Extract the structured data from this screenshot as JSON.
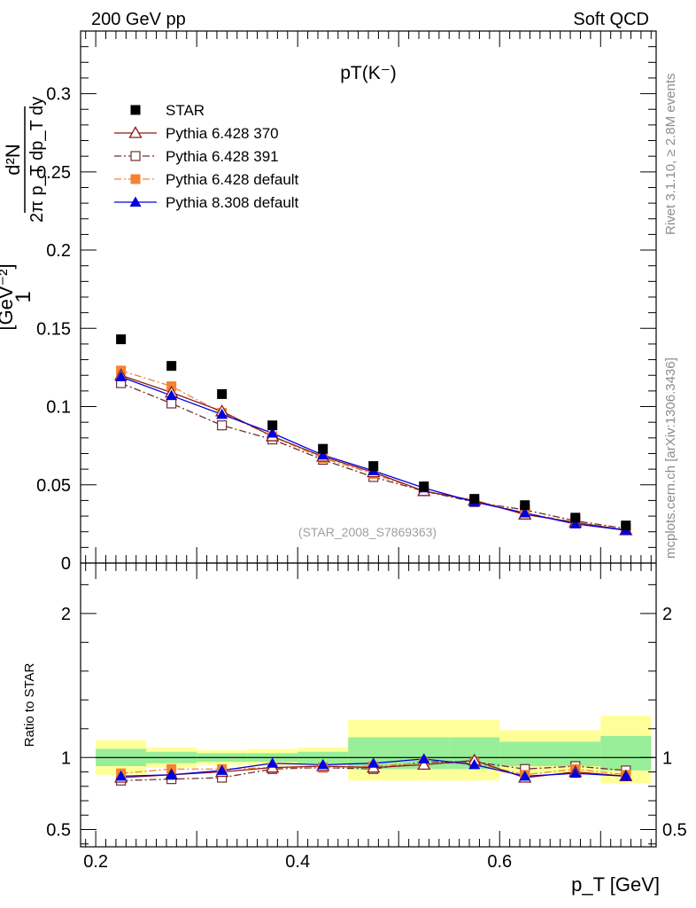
{
  "header": {
    "left": "200 GeV pp",
    "right": "Soft QCD"
  },
  "side_notes": {
    "rivet": "Rivet 3.1.10, ≥ 2.8M events",
    "site": "mcplots.cern.ch [arXiv:1306.3436]"
  },
  "chart_data": [
    {
      "type": "scatter",
      "panel": "main",
      "title": "pT(K⁻)",
      "watermark": "(STAR_2008_S7869363)",
      "ylabel_parts": {
        "lead": "1",
        "frac_num": "d²N",
        "frac_den": "2π p_T dp_T dy",
        "unit": "[GeV⁻²]"
      },
      "xlabel": "p_T [GeV]",
      "xlim": [
        0.185,
        0.755
      ],
      "ylim": [
        0,
        0.34
      ],
      "y_ticks": [
        "0",
        "0.05",
        "0.1",
        "0.15",
        "0.2",
        "0.25",
        "0.3"
      ],
      "legend_position": "top-left",
      "x": [
        0.225,
        0.275,
        0.325,
        0.375,
        0.425,
        0.475,
        0.525,
        0.575,
        0.625,
        0.675,
        0.725
      ],
      "series": [
        {
          "name": "STAR",
          "color": "#000000",
          "marker": "square",
          "line": "none",
          "values": [
            0.143,
            0.126,
            0.108,
            0.088,
            0.073,
            0.062,
            0.049,
            0.041,
            0.037,
            0.029,
            0.024
          ]
        },
        {
          "name": "Pythia 6.428 370",
          "color": "#8b1a1a",
          "marker": "open-triangle",
          "line": "solid",
          "values": [
            0.12,
            0.109,
            0.097,
            0.081,
            0.068,
            0.058,
            0.046,
            0.04,
            0.031,
            0.026,
            0.021
          ]
        },
        {
          "name": "Pythia 6.428 391",
          "color": "#6b3030",
          "marker": "open-square",
          "line": "dashdot",
          "values": [
            0.115,
            0.102,
            0.088,
            0.079,
            0.066,
            0.055,
            0.046,
            0.039,
            0.034,
            0.027,
            0.022
          ]
        },
        {
          "name": "Pythia 6.428 default",
          "color": "#f58231",
          "marker": "square",
          "line": "dashdot",
          "values": [
            0.123,
            0.113,
            0.096,
            0.081,
            0.067,
            0.057,
            0.046,
            0.04,
            0.032,
            0.026,
            0.021
          ]
        },
        {
          "name": "Pythia 8.308 default",
          "color": "#0000e0",
          "marker": "triangle",
          "line": "solid",
          "values": [
            0.119,
            0.107,
            0.095,
            0.083,
            0.069,
            0.059,
            0.048,
            0.039,
            0.032,
            0.025,
            0.021
          ]
        }
      ]
    },
    {
      "type": "scatter",
      "panel": "ratio",
      "ylabel": "Ratio to STAR",
      "ylim": [
        0.38,
        2.35
      ],
      "y_ticks": [
        "0.5",
        "1",
        "2"
      ],
      "x_ticks": [
        "0.2",
        "0.4",
        "0.6"
      ],
      "bins": [
        [
          0.2,
          0.25
        ],
        [
          0.25,
          0.3
        ],
        [
          0.3,
          0.35
        ],
        [
          0.35,
          0.4
        ],
        [
          0.4,
          0.45
        ],
        [
          0.45,
          0.55
        ],
        [
          0.55,
          0.6
        ],
        [
          0.6,
          0.7
        ],
        [
          0.7,
          0.75
        ]
      ],
      "band_yellow": [
        [
          0.88,
          1.12
        ],
        [
          0.93,
          1.07
        ],
        [
          0.95,
          1.05
        ],
        [
          0.94,
          1.06
        ],
        [
          0.93,
          1.07
        ],
        [
          0.84,
          1.26
        ],
        [
          0.84,
          1.26
        ],
        [
          0.89,
          1.19
        ],
        [
          0.82,
          1.29
        ]
      ],
      "band_green": [
        [
          0.94,
          1.06
        ],
        [
          0.96,
          1.04
        ],
        [
          0.97,
          1.03
        ],
        [
          0.97,
          1.03
        ],
        [
          0.96,
          1.04
        ],
        [
          0.92,
          1.14
        ],
        [
          0.92,
          1.14
        ],
        [
          0.94,
          1.11
        ],
        [
          0.91,
          1.15
        ]
      ],
      "x": [
        0.225,
        0.275,
        0.325,
        0.375,
        0.425,
        0.475,
        0.525,
        0.575,
        0.625,
        0.675,
        0.725
      ],
      "series": [
        {
          "name": "Pythia 6.428 370",
          "color": "#8b1a1a",
          "marker": "open-triangle",
          "line": "solid",
          "values": [
            0.86,
            0.88,
            0.9,
            0.93,
            0.94,
            0.93,
            0.95,
            0.98,
            0.86,
            0.9,
            0.87
          ]
        },
        {
          "name": "Pythia 6.428 391",
          "color": "#6b3030",
          "marker": "open-square",
          "line": "dashdot",
          "values": [
            0.84,
            0.85,
            0.86,
            0.92,
            0.93,
            0.92,
            0.97,
            0.97,
            0.92,
            0.94,
            0.91
          ]
        },
        {
          "name": "Pythia 6.428 default",
          "color": "#f58231",
          "marker": "square",
          "line": "dashdot",
          "values": [
            0.89,
            0.92,
            0.92,
            0.93,
            0.93,
            0.94,
            0.96,
            0.96,
            0.88,
            0.92,
            0.88
          ]
        },
        {
          "name": "Pythia 8.308 default",
          "color": "#0000e0",
          "marker": "triangle",
          "line": "solid",
          "values": [
            0.87,
            0.88,
            0.91,
            0.96,
            0.95,
            0.96,
            0.99,
            0.95,
            0.87,
            0.89,
            0.87
          ]
        }
      ]
    }
  ]
}
